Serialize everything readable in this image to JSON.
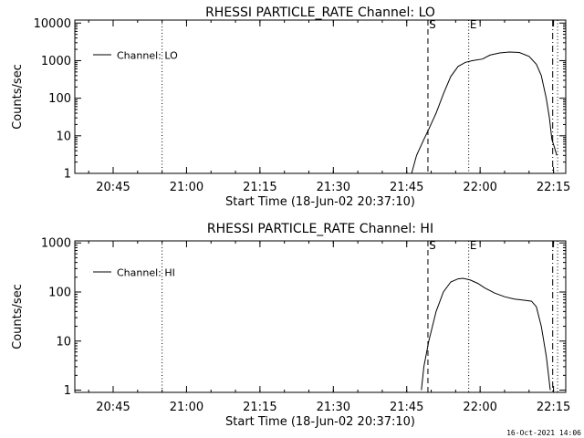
{
  "chart_data": [
    {
      "type": "line",
      "title": "RHESSI PARTICLE_RATE Channel: LO",
      "xlabel": "Start Time (18-Jun-02 20:37:10)",
      "ylabel": "Counts/sec",
      "y_scale": "log",
      "ylim": [
        1,
        12000
      ],
      "xlim": [
        "20:37:10",
        "22:17:30"
      ],
      "x_ticks": [
        "20:45",
        "21:00",
        "21:15",
        "21:30",
        "21:45",
        "22:00",
        "22:15"
      ],
      "y_ticks": [
        "1",
        "10",
        "100",
        "1000",
        "10000"
      ],
      "legend": {
        "position": "top-left",
        "entries": [
          "Channel: LO"
        ]
      },
      "markers": [
        {
          "label": "",
          "style": "dotted",
          "time": "20:55:00"
        },
        {
          "label": "S",
          "style": "dashed",
          "time": "21:49:20"
        },
        {
          "label": "E",
          "style": "dotted",
          "time": "21:57:40"
        },
        {
          "label": "",
          "style": "dashdot",
          "time": "22:14:50"
        },
        {
          "label": "",
          "style": "dotted",
          "time": "22:15:50"
        }
      ],
      "series": [
        {
          "name": "Channel: LO",
          "points": [
            [
              "21:46:00",
              1
            ],
            [
              "21:47:00",
              3
            ],
            [
              "21:48:30",
              8
            ],
            [
              "21:49:30",
              15
            ],
            [
              "21:51:00",
              40
            ],
            [
              "21:52:30",
              130
            ],
            [
              "21:54:00",
              380
            ],
            [
              "21:55:30",
              700
            ],
            [
              "21:57:00",
              900
            ],
            [
              "21:58:30",
              1000
            ],
            [
              "22:00:30",
              1100
            ],
            [
              "22:02:00",
              1400
            ],
            [
              "22:04:00",
              1600
            ],
            [
              "22:06:00",
              1700
            ],
            [
              "22:08:00",
              1650
            ],
            [
              "22:10:00",
              1300
            ],
            [
              "22:11:30",
              800
            ],
            [
              "22:12:30",
              400
            ],
            [
              "22:13:30",
              100
            ],
            [
              "22:14:10",
              30
            ],
            [
              "22:14:40",
              8
            ],
            [
              "22:15:10",
              5
            ],
            [
              "22:15:40",
              3
            ]
          ]
        }
      ]
    },
    {
      "type": "line",
      "title": "RHESSI PARTICLE_RATE Channel: HI",
      "xlabel": "Start Time (18-Jun-02 20:37:10)",
      "ylabel": "Counts/sec",
      "y_scale": "log",
      "ylim": [
        0.9,
        1100
      ],
      "xlim": [
        "20:37:10",
        "22:17:30"
      ],
      "x_ticks": [
        "20:45",
        "21:00",
        "21:15",
        "21:30",
        "21:45",
        "22:00",
        "22:15"
      ],
      "y_ticks": [
        "1",
        "10",
        "100",
        "1000"
      ],
      "legend": {
        "position": "top-left",
        "entries": [
          "Channel: HI"
        ]
      },
      "markers": [
        {
          "label": "",
          "style": "dotted",
          "time": "20:55:00"
        },
        {
          "label": "S",
          "style": "dashed",
          "time": "21:49:20"
        },
        {
          "label": "E",
          "style": "dotted",
          "time": "21:57:40"
        },
        {
          "label": "",
          "style": "dashdot",
          "time": "22:14:50"
        },
        {
          "label": "",
          "style": "dotted",
          "time": "22:15:50"
        }
      ],
      "series": [
        {
          "name": "Channel: HI",
          "points": [
            [
              "21:48:00",
              1
            ],
            [
              "21:48:30",
              3
            ],
            [
              "21:49:30",
              10
            ],
            [
              "21:51:00",
              40
            ],
            [
              "21:52:30",
              100
            ],
            [
              "21:54:00",
              160
            ],
            [
              "21:55:30",
              185
            ],
            [
              "21:56:30",
              190
            ],
            [
              "21:58:00",
              175
            ],
            [
              "21:59:30",
              150
            ],
            [
              "22:01:00",
              120
            ],
            [
              "22:03:00",
              95
            ],
            [
              "22:05:00",
              80
            ],
            [
              "22:07:00",
              72
            ],
            [
              "22:09:00",
              68
            ],
            [
              "22:10:30",
              65
            ],
            [
              "22:11:30",
              50
            ],
            [
              "22:12:30",
              20
            ],
            [
              "22:13:30",
              5
            ],
            [
              "22:14:00",
              2
            ],
            [
              "22:14:20",
              1
            ]
          ]
        }
      ]
    }
  ],
  "footer": {
    "date_stamp": "16-Oct-2021 14:06"
  }
}
